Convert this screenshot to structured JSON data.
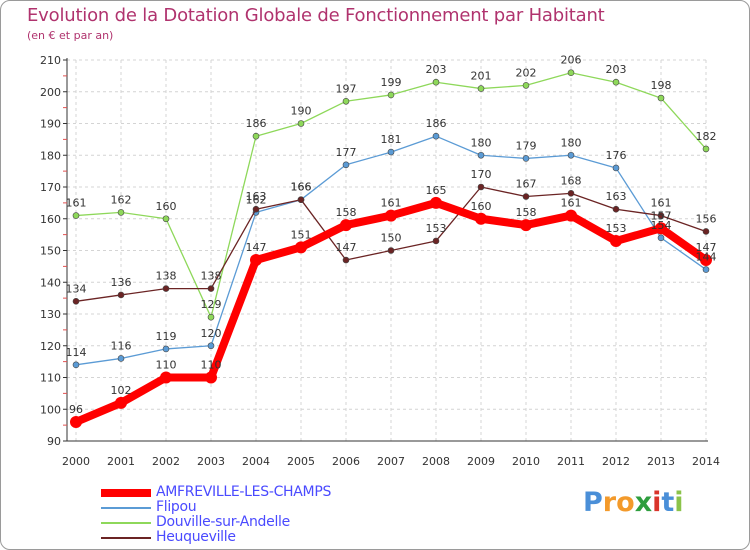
{
  "header": {
    "title": "Evolution de la Dotation Globale de Fonctionnement par Habitant",
    "subtitle": "(en € et par an)"
  },
  "chart_data": {
    "type": "line",
    "categories": [
      "2000",
      "2001",
      "2002",
      "2003",
      "2004",
      "2005",
      "2006",
      "2007",
      "2008",
      "2009",
      "2010",
      "2011",
      "2012",
      "2013",
      "2014"
    ],
    "ylim": [
      90,
      210
    ],
    "yticks": [
      90,
      100,
      110,
      120,
      130,
      140,
      150,
      160,
      170,
      180,
      190,
      200,
      210
    ],
    "grid": true,
    "legend_placement": "bottom-left",
    "series": [
      {
        "name": "AMFREVILLE-LES-CHAMPS",
        "color": "#ff0000",
        "values": [
          96,
          102,
          110,
          110,
          147,
          151,
          158,
          161,
          165,
          160,
          158,
          161,
          153,
          157,
          147
        ]
      },
      {
        "name": "Flipou",
        "color": "#5b9bd5",
        "values": [
          114,
          116,
          119,
          120,
          162,
          166,
          177,
          181,
          186,
          180,
          179,
          180,
          176,
          154,
          144
        ]
      },
      {
        "name": "Douville-sur-Andelle",
        "color": "#8ed85a",
        "values": [
          161,
          162,
          160,
          129,
          186,
          190,
          197,
          199,
          203,
          201,
          202,
          206,
          203,
          198,
          182
        ]
      },
      {
        "name": "Heuqueville",
        "color": "#6b2424",
        "values": [
          134,
          136,
          138,
          138,
          163,
          166,
          147,
          150,
          153,
          170,
          167,
          168,
          163,
          161,
          156
        ]
      }
    ]
  },
  "logo": {
    "letters": [
      "P",
      "r",
      "o",
      "x",
      "i",
      "t",
      "i"
    ],
    "colors": [
      "#4a8fd8",
      "#f39a2b",
      "#f39a2b",
      "#2e9e3e",
      "#d9342b",
      "#4a8fd8",
      "#8bc34a"
    ]
  }
}
